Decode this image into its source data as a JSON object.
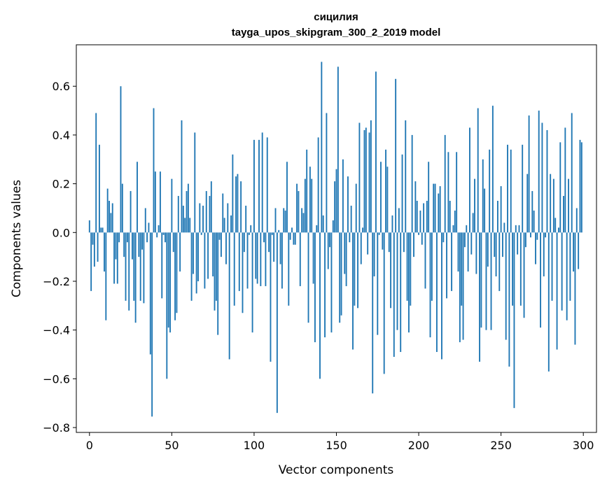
{
  "chart_data": {
    "type": "bar",
    "title": "сицилия",
    "subtitle": "tayga_upos_skipgram_300_2_2019 model",
    "xlabel": "Vector components",
    "ylabel": "Components values",
    "xlim": [
      -8,
      308
    ],
    "ylim": [
      -0.82,
      0.77
    ],
    "xticks": [
      0,
      50,
      100,
      150,
      200,
      250,
      300
    ],
    "yticks": [
      -0.8,
      -0.6,
      -0.4,
      -0.2,
      0.0,
      0.2,
      0.4,
      0.6
    ],
    "ytick_labels": [
      "−0.8",
      "−0.6",
      "−0.4",
      "−0.2",
      "0.0",
      "0.2",
      "0.4",
      "0.6"
    ],
    "xtick_labels": [
      "0",
      "50",
      "100",
      "150",
      "200",
      "250",
      "300"
    ],
    "grid": false,
    "bar_color": "#1f77b4",
    "values": [
      0.05,
      -0.24,
      -0.05,
      -0.14,
      0.49,
      -0.12,
      0.36,
      0.02,
      0.02,
      -0.16,
      -0.36,
      0.18,
      0.13,
      0.08,
      0.12,
      -0.21,
      -0.11,
      -0.21,
      -0.04,
      0.6,
      0.2,
      -0.1,
      -0.28,
      -0.04,
      -0.32,
      0.17,
      -0.11,
      -0.28,
      -0.37,
      0.29,
      -0.1,
      -0.28,
      -0.07,
      -0.29,
      0.1,
      -0.04,
      0.04,
      -0.5,
      -0.755,
      0.51,
      0.25,
      -0.02,
      0.03,
      0.25,
      -0.27,
      -0.01,
      -0.04,
      -0.6,
      -0.39,
      -0.41,
      0.22,
      -0.08,
      -0.36,
      -0.33,
      0.15,
      -0.16,
      0.46,
      0.11,
      0.06,
      0.17,
      0.2,
      0.06,
      -0.28,
      -0.17,
      0.41,
      -0.25,
      -0.2,
      0.12,
      -0.01,
      0.11,
      -0.23,
      0.17,
      -0.19,
      0.15,
      0.21,
      -0.18,
      -0.32,
      -0.28,
      -0.42,
      -0.03,
      -0.1,
      0.16,
      0.06,
      -0.13,
      0.12,
      -0.52,
      0.07,
      0.32,
      -0.3,
      0.23,
      0.24,
      -0.24,
      0.21,
      -0.33,
      -0.08,
      0.11,
      -0.23,
      -0.01,
      0.03,
      -0.41,
      0.38,
      -0.19,
      -0.21,
      0.38,
      -0.22,
      0.41,
      -0.04,
      -0.22,
      0.39,
      -0.08,
      -0.53,
      -0.01,
      -0.12,
      0.1,
      -0.74,
      0.01,
      -0.13,
      -0.23,
      0.1,
      0.09,
      0.29,
      -0.3,
      -0.03,
      0.02,
      -0.05,
      -0.05,
      0.2,
      0.17,
      -0.22,
      0.1,
      0.08,
      0.22,
      0.34,
      -0.37,
      0.27,
      0.22,
      -0.21,
      -0.45,
      0.03,
      0.39,
      -0.6,
      0.7,
      0.07,
      -0.43,
      0.49,
      -0.15,
      -0.06,
      -0.41,
      0.05,
      0.21,
      0.26,
      0.68,
      -0.37,
      -0.34,
      0.3,
      -0.17,
      -0.22,
      0.23,
      -0.04,
      0.11,
      -0.48,
      -0.3,
      0.2,
      -0.31,
      0.45,
      -0.13,
      0.02,
      0.42,
      0.43,
      -0.09,
      0.41,
      0.46,
      -0.66,
      -0.18,
      0.66,
      -0.42,
      -0.01,
      0.29,
      -0.07,
      -0.58,
      0.34,
      0.27,
      -0.08,
      -0.31,
      0.07,
      -0.51,
      0.63,
      -0.4,
      0.1,
      -0.49,
      0.32,
      -0.08,
      0.46,
      -0.28,
      -0.41,
      -0.3,
      0.4,
      -0.1,
      0.21,
      0.13,
      -0.01,
      0.09,
      -0.05,
      0.12,
      -0.23,
      0.13,
      0.29,
      -0.43,
      -0.28,
      0.2,
      0.2,
      -0.49,
      0.16,
      0.19,
      -0.52,
      -0.04,
      0.4,
      -0.27,
      0.33,
      0.13,
      -0.24,
      0.03,
      0.09,
      0.33,
      -0.16,
      -0.45,
      -0.3,
      -0.44,
      -0.06,
      0.03,
      -0.16,
      0.43,
      -0.09,
      0.08,
      0.22,
      -0.17,
      0.51,
      -0.53,
      -0.39,
      0.3,
      0.18,
      -0.4,
      -0.14,
      0.34,
      -0.4,
      0.52,
      -0.1,
      -0.18,
      0.13,
      -0.24,
      0.19,
      -0.1,
      0.04,
      -0.44,
      0.36,
      -0.55,
      0.34,
      -0.3,
      -0.72,
      0.03,
      -0.09,
      0.03,
      -0.3,
      0.36,
      -0.35,
      -0.06,
      0.24,
      0.48,
      -0.02,
      0.17,
      0.09,
      -0.13,
      -0.03,
      0.5,
      -0.39,
      0.45,
      -0.18,
      -0.02,
      0.42,
      -0.57,
      0.24,
      -0.28,
      0.22,
      0.06,
      -0.48,
      0.02,
      0.37,
      -0.32,
      0.15,
      0.43,
      -0.36,
      0.22,
      -0.28,
      0.49,
      -0.16,
      -0.46,
      0.1,
      -0.15,
      0.38,
      0.37
    ]
  }
}
